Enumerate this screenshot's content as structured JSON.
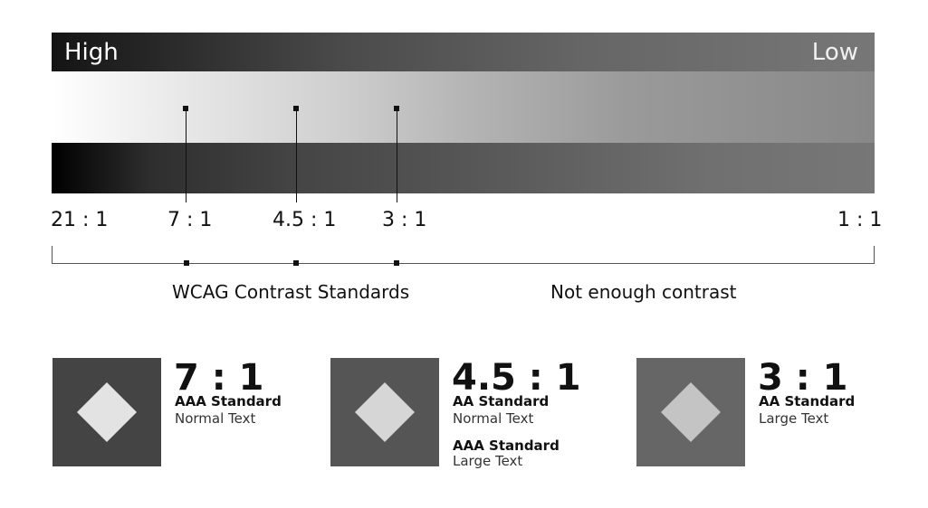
{
  "scale": {
    "high_label": "High",
    "low_label": "Low",
    "ratios": [
      "21 : 1",
      "7 : 1",
      "4.5 : 1",
      "3 : 1",
      "1 : 1"
    ],
    "wcag_caption": "WCAG Contrast Standards",
    "not_enough_caption": "Not enough contrast"
  },
  "cards": [
    {
      "ratio": "7 : 1",
      "levels": [
        {
          "standard": "AAA Standard",
          "text_size": "Normal Text"
        }
      ],
      "box_color": "#444444",
      "diamond_color": "#e3e3e3"
    },
    {
      "ratio": "4.5 : 1",
      "levels": [
        {
          "standard": "AA Standard",
          "text_size": "Normal Text"
        },
        {
          "standard": "AAA Standard",
          "text_size": "Large Text"
        }
      ],
      "box_color": "#555555",
      "diamond_color": "#d6d6d6"
    },
    {
      "ratio": "3 : 1",
      "levels": [
        {
          "standard": "AA Standard",
          "text_size": "Large Text"
        }
      ],
      "box_color": "#666666",
      "diamond_color": "#c4c4c4"
    }
  ]
}
